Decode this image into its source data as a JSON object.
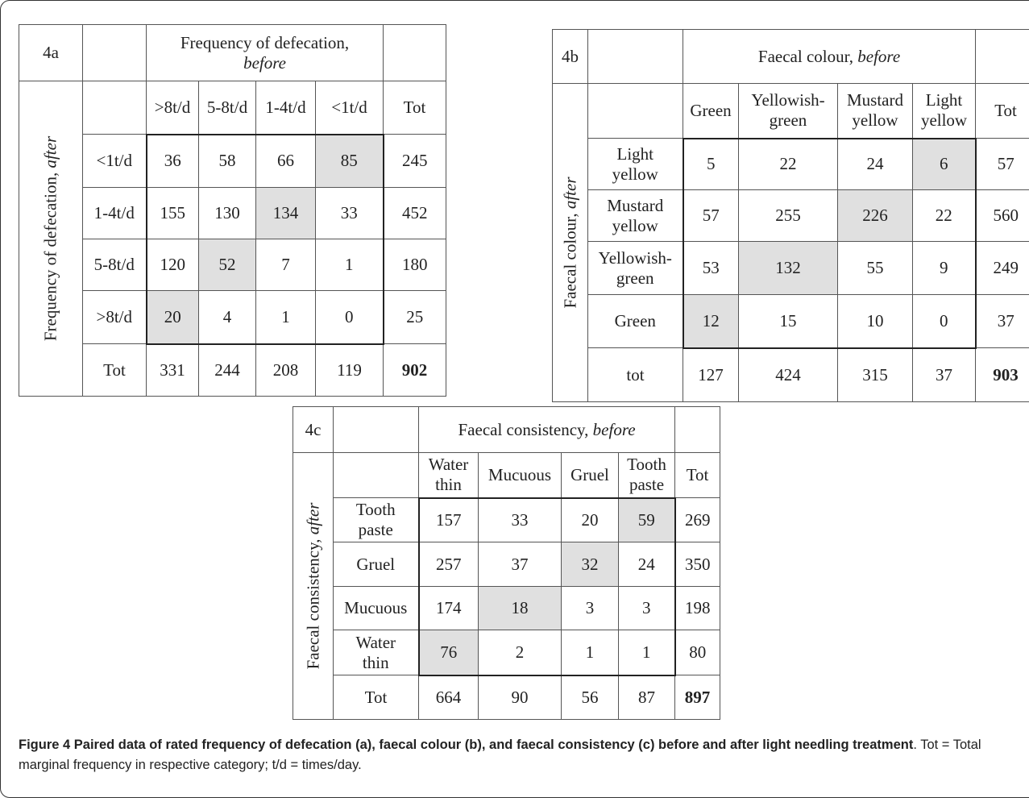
{
  "table_a": {
    "id": "4a",
    "col_header": "Frequency of defecation,",
    "col_header_em": "before",
    "row_header": "Frequency of defecation,",
    "row_header_em": "after",
    "cols": [
      ">8t/d",
      "5-8t/d",
      "1-4t/d",
      "<1t/d"
    ],
    "tot_label": "Tot",
    "rows": [
      {
        "label": "<1t/d",
        "values": [
          "36",
          "58",
          "66",
          "85"
        ],
        "tot": "245"
      },
      {
        "label": "1-4t/d",
        "values": [
          "155",
          "130",
          "134",
          "33"
        ],
        "tot": "452"
      },
      {
        "label": "5-8t/d",
        "values": [
          "120",
          "52",
          "7",
          "1"
        ],
        "tot": "180"
      },
      {
        "label": ">8t/d",
        "values": [
          "20",
          "4",
          "1",
          "0"
        ],
        "tot": "25"
      }
    ],
    "totals": [
      "331",
      "244",
      "208",
      "119"
    ],
    "grand_total": "902"
  },
  "table_b": {
    "id": "4b",
    "col_header": "Faecal colour,",
    "col_header_em": "before",
    "row_header": "Faecal colour,",
    "row_header_em": "after",
    "cols": [
      [
        "Green"
      ],
      [
        "Yellowish-",
        "green"
      ],
      [
        "Mustard",
        "yellow"
      ],
      [
        "Light",
        "yellow"
      ]
    ],
    "tot_label": "Tot",
    "rows": [
      {
        "label": [
          "Light",
          "yellow"
        ],
        "values": [
          "5",
          "22",
          "24",
          "6"
        ],
        "tot": "57"
      },
      {
        "label": [
          "Mustard",
          "yellow"
        ],
        "values": [
          "57",
          "255",
          "226",
          "22"
        ],
        "tot": "560"
      },
      {
        "label": [
          "Yellowish-",
          "green"
        ],
        "values": [
          "53",
          "132",
          "55",
          "9"
        ],
        "tot": "249"
      },
      {
        "label": [
          "Green"
        ],
        "values": [
          "12",
          "15",
          "10",
          "0"
        ],
        "tot": "37"
      }
    ],
    "totals_label": "tot",
    "totals": [
      "127",
      "424",
      "315",
      "37"
    ],
    "grand_total": "903"
  },
  "table_c": {
    "id": "4c",
    "col_header": "Faecal consistency,",
    "col_header_em": "before",
    "row_header": "Faecal consistency,",
    "row_header_em": "after",
    "cols": [
      [
        "Water",
        "thin"
      ],
      [
        "Mucuous"
      ],
      [
        "Gruel"
      ],
      [
        "Tooth",
        "paste"
      ]
    ],
    "tot_label": "Tot",
    "rows": [
      {
        "label": [
          "Tooth",
          "paste"
        ],
        "values": [
          "157",
          "33",
          "20",
          "59"
        ],
        "tot": "269"
      },
      {
        "label": [
          "Gruel"
        ],
        "values": [
          "257",
          "37",
          "32",
          "24"
        ],
        "tot": "350"
      },
      {
        "label": [
          "Mucuous"
        ],
        "values": [
          "174",
          "18",
          "3",
          "3"
        ],
        "tot": "198"
      },
      {
        "label": [
          "Water",
          "thin"
        ],
        "values": [
          "76",
          "2",
          "1",
          "1"
        ],
        "tot": "80"
      }
    ],
    "totals": [
      "664",
      "90",
      "56",
      "87"
    ],
    "grand_total": "897"
  },
  "caption": {
    "bold": "Figure 4 Paired data of rated frequency of defecation (a), faecal colour (b), and faecal consistency (c) before and after light needling treatment",
    "rest": ". Tot = Total marginal frequency in respective category; t/d = times/day."
  }
}
